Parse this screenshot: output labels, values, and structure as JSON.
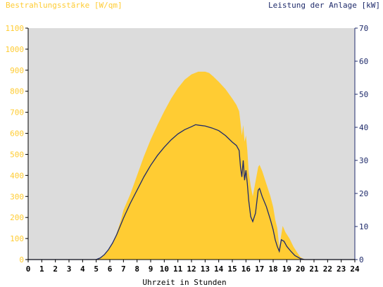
{
  "chart_data": {
    "type": "area",
    "title_left": "Bestrahlungsstärke [W/qm]",
    "title_right": "Leistung der Anlage [kW]",
    "xlabel": "Uhrzeit in Stunden",
    "x_ticks": [
      "0",
      "1",
      "2",
      "3",
      "4",
      "5",
      "6",
      "7",
      "8",
      "9",
      "10",
      "11",
      "12",
      "13",
      "14",
      "15",
      "16",
      "17",
      "18",
      "19",
      "20",
      "21",
      "22",
      "23",
      "24"
    ],
    "xlim": [
      0,
      24
    ],
    "y_left": {
      "label": "Bestrahlungsstärke [W/qm]",
      "lim": [
        0,
        1100
      ],
      "ticks": [
        "0",
        "100",
        "200",
        "300",
        "400",
        "500",
        "600",
        "700",
        "800",
        "900",
        "1000",
        "1100"
      ]
    },
    "y_right": {
      "label": "Leistung der Anlage [kW]",
      "lim": [
        0,
        70
      ],
      "ticks": [
        "0",
        "10",
        "20",
        "30",
        "40",
        "50",
        "60",
        "70"
      ]
    },
    "grid": false,
    "series": [
      {
        "name": "Bestrahlungsstärke [W/qm]",
        "axis": "left",
        "kind": "area",
        "color": "#ffcc33",
        "points": [
          [
            0,
            0
          ],
          [
            4.8,
            0
          ],
          [
            5.0,
            0
          ],
          [
            5.3,
            8
          ],
          [
            5.6,
            25
          ],
          [
            5.9,
            45
          ],
          [
            6.2,
            80
          ],
          [
            6.5,
            125
          ],
          [
            6.8,
            185
          ],
          [
            7.0,
            235
          ],
          [
            7.5,
            310
          ],
          [
            8.0,
            400
          ],
          [
            8.5,
            490
          ],
          [
            9.0,
            570
          ],
          [
            9.5,
            640
          ],
          [
            10.0,
            705
          ],
          [
            10.5,
            765
          ],
          [
            11.0,
            815
          ],
          [
            11.5,
            855
          ],
          [
            12.0,
            880
          ],
          [
            12.5,
            893
          ],
          [
            13.0,
            893
          ],
          [
            13.3,
            887
          ],
          [
            13.6,
            870
          ],
          [
            14.0,
            845
          ],
          [
            14.5,
            810
          ],
          [
            15.0,
            765
          ],
          [
            15.3,
            735
          ],
          [
            15.5,
            705
          ],
          [
            15.6,
            650
          ],
          [
            15.7,
            590
          ],
          [
            15.8,
            640
          ],
          [
            15.9,
            560
          ],
          [
            16.0,
            590
          ],
          [
            16.1,
            520
          ],
          [
            16.2,
            420
          ],
          [
            16.35,
            350
          ],
          [
            16.5,
            300
          ],
          [
            16.7,
            370
          ],
          [
            16.9,
            440
          ],
          [
            17.0,
            450
          ],
          [
            17.2,
            420
          ],
          [
            17.5,
            360
          ],
          [
            17.8,
            300
          ],
          [
            18.0,
            250
          ],
          [
            18.15,
            190
          ],
          [
            18.3,
            150
          ],
          [
            18.45,
            60
          ],
          [
            18.55,
            100
          ],
          [
            18.7,
            160
          ],
          [
            18.9,
            130
          ],
          [
            19.2,
            100
          ],
          [
            19.5,
            60
          ],
          [
            19.8,
            30
          ],
          [
            20.0,
            12
          ],
          [
            20.2,
            4
          ],
          [
            20.4,
            0
          ],
          [
            24,
            0
          ]
        ]
      },
      {
        "name": "Leistung der Anlage [kW]",
        "axis": "right",
        "kind": "line",
        "color": "#1f2b6b",
        "points": [
          [
            0,
            0
          ],
          [
            5.0,
            0
          ],
          [
            5.3,
            0.5
          ],
          [
            5.6,
            1.5
          ],
          [
            5.9,
            3
          ],
          [
            6.2,
            5
          ],
          [
            6.5,
            7.5
          ],
          [
            6.8,
            10.5
          ],
          [
            7.0,
            12.5
          ],
          [
            7.5,
            17
          ],
          [
            8.0,
            21
          ],
          [
            8.5,
            25
          ],
          [
            9.0,
            28.5
          ],
          [
            9.5,
            31.5
          ],
          [
            10.0,
            34
          ],
          [
            10.5,
            36.2
          ],
          [
            11.0,
            38
          ],
          [
            11.5,
            39.3
          ],
          [
            12.0,
            40.2
          ],
          [
            12.3,
            40.8
          ],
          [
            12.6,
            40.6
          ],
          [
            13.0,
            40.4
          ],
          [
            13.5,
            39.8
          ],
          [
            14.0,
            39
          ],
          [
            14.5,
            37.5
          ],
          [
            15.0,
            35.5
          ],
          [
            15.3,
            34.5
          ],
          [
            15.5,
            33
          ],
          [
            15.6,
            28
          ],
          [
            15.7,
            25
          ],
          [
            15.8,
            30
          ],
          [
            15.9,
            24
          ],
          [
            16.0,
            27
          ],
          [
            16.1,
            23
          ],
          [
            16.2,
            18
          ],
          [
            16.35,
            13
          ],
          [
            16.5,
            11.5
          ],
          [
            16.7,
            14
          ],
          [
            16.9,
            21
          ],
          [
            17.0,
            21.5
          ],
          [
            17.2,
            19
          ],
          [
            17.5,
            16
          ],
          [
            17.8,
            12
          ],
          [
            18.0,
            9
          ],
          [
            18.15,
            6
          ],
          [
            18.3,
            4
          ],
          [
            18.45,
            2.5
          ],
          [
            18.6,
            6
          ],
          [
            18.8,
            5.5
          ],
          [
            19.0,
            4
          ],
          [
            19.3,
            2.5
          ],
          [
            19.6,
            1.2
          ],
          [
            20.0,
            0.3
          ],
          [
            20.3,
            0
          ],
          [
            24,
            0
          ]
        ]
      }
    ]
  }
}
